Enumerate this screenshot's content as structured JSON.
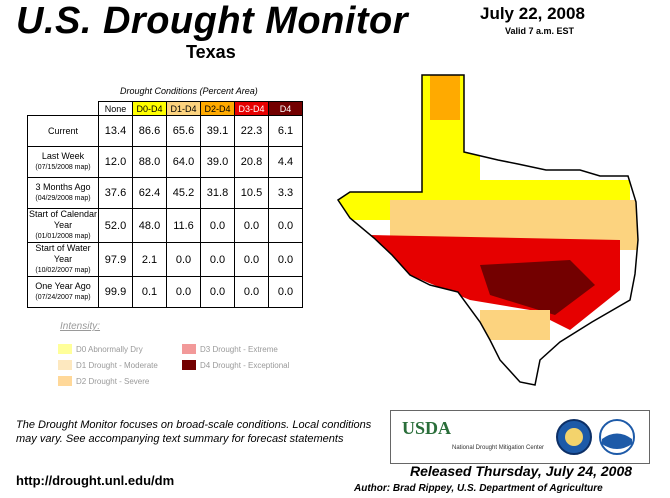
{
  "header": {
    "title": "U.S. Drought Monitor",
    "state": "Texas",
    "date": "July 22, 2008",
    "valid": "Valid 7 a.m. EST"
  },
  "table": {
    "caption": "Drought Conditions (Percent Area)",
    "columns": [
      {
        "label": "None",
        "color": "#ffffff"
      },
      {
        "label": "D0-D4",
        "color": "#ffff00"
      },
      {
        "label": "D1-D4",
        "color": "#fcd37f"
      },
      {
        "label": "D2-D4",
        "color": "#ffaa00"
      },
      {
        "label": "D3-D4",
        "color": "#e60000"
      },
      {
        "label": "D4",
        "color": "#730000"
      }
    ],
    "rows": [
      {
        "label": "Current",
        "sub": "",
        "values": [
          "13.4",
          "86.6",
          "65.6",
          "39.1",
          "22.3",
          "6.1"
        ]
      },
      {
        "label": "Last Week",
        "sub": "(07/15/2008 map)",
        "values": [
          "12.0",
          "88.0",
          "64.0",
          "39.0",
          "20.8",
          "4.4"
        ]
      },
      {
        "label": "3 Months Ago",
        "sub": "(04/29/2008 map)",
        "values": [
          "37.6",
          "62.4",
          "45.2",
          "31.8",
          "10.5",
          "3.3"
        ]
      },
      {
        "label": "Start of Calendar Year",
        "sub": "(01/01/2008 map)",
        "values": [
          "52.0",
          "48.0",
          "11.6",
          "0.0",
          "0.0",
          "0.0"
        ]
      },
      {
        "label": "Start of Water Year",
        "sub": "(10/02/2007 map)",
        "values": [
          "97.9",
          "2.1",
          "0.0",
          "0.0",
          "0.0",
          "0.0"
        ]
      },
      {
        "label": "One Year Ago",
        "sub": "(07/24/2007 map)",
        "values": [
          "99.9",
          "0.1",
          "0.0",
          "0.0",
          "0.0",
          "0.0"
        ]
      }
    ]
  },
  "legend": {
    "title": "Intensity:",
    "items": [
      {
        "label": "D0 Abnormally Dry",
        "color": "#ffff9a"
      },
      {
        "label": "D1 Drought - Moderate",
        "color": "#fde8bf"
      },
      {
        "label": "D2 Drought - Severe",
        "color": "#ffd899"
      },
      {
        "label": "D3 Drought - Extreme",
        "color": "#f29999"
      },
      {
        "label": "D4 Drought - Exceptional",
        "color": "#730000"
      }
    ]
  },
  "footer": {
    "note": "The Drought Monitor focuses on broad-scale conditions. Local conditions may vary. See accompanying text summary for forecast statements",
    "url": "http://drought.unl.edu/dm",
    "released": "Released Thursday, July 24, 2008",
    "author": "Author: Brad Rippey, U.S. Department of Agriculture"
  },
  "logos": {
    "usda": "USDA",
    "ndmc": "National Drought Mitigation Center"
  },
  "map": {
    "region": "Texas",
    "colors": {
      "none": "#ffffff",
      "d0": "#ffff00",
      "d1": "#fcd37f",
      "d2": "#ffaa00",
      "d3": "#e60000",
      "d4": "#730000"
    }
  }
}
